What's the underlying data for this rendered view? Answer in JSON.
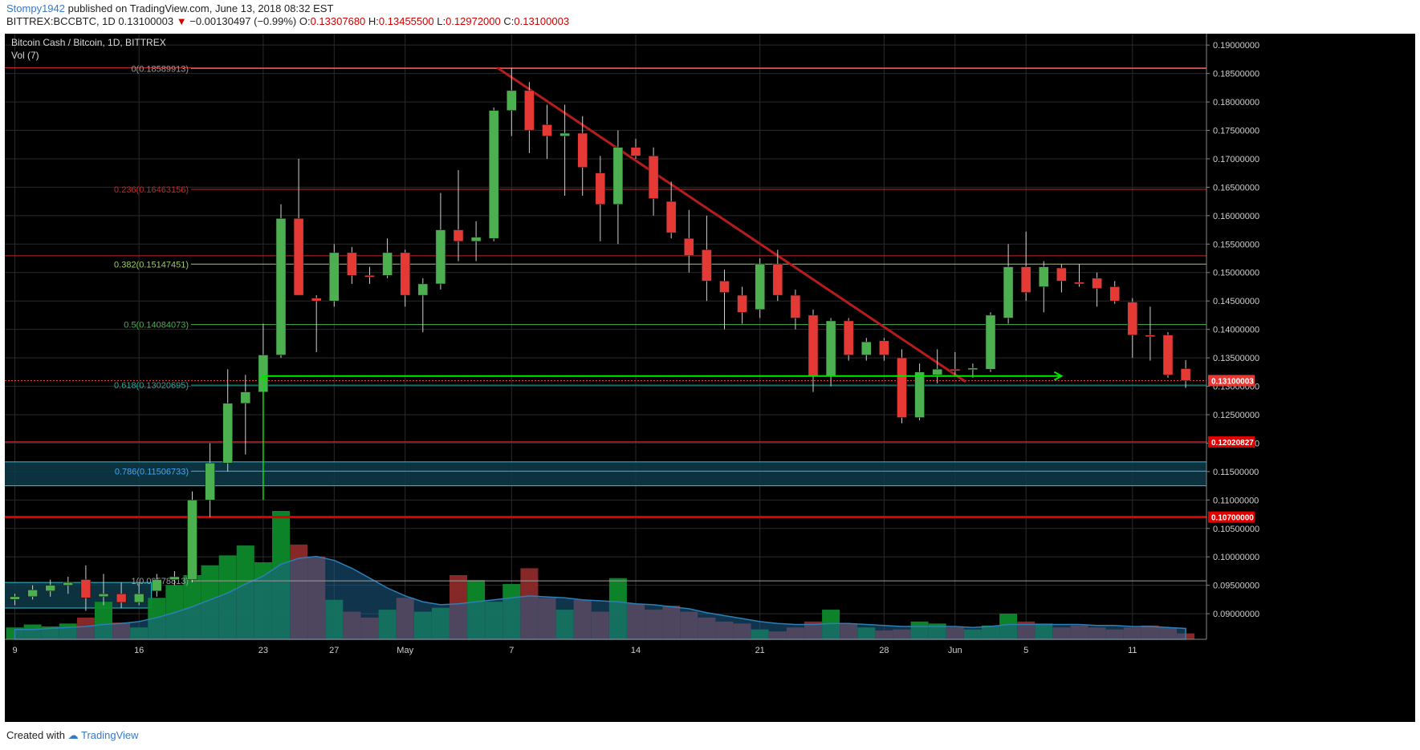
{
  "header": {
    "author": "Stompy1942",
    "published": "published on TradingView.com, June 13, 2018 08:32 EST",
    "symbol": "BITTREX:BCCBTC, 1D",
    "last": "0.13100003",
    "change": "−0.00130497 (−0.99%)",
    "o_label": "O:",
    "o_value": "0.13307680",
    "h_label": "H:",
    "h_value": "0.13455500",
    "l_label": "L:",
    "l_value": "0.12972000",
    "c_label": "C:",
    "c_value": "0.13100003"
  },
  "footer": {
    "created_with": "Created with",
    "brand": "TradingView"
  },
  "colors": {
    "background": "#000000",
    "grid": "#2a2a2a",
    "up": "#4caf50",
    "down": "#e53935",
    "trendline": "#b71c1c",
    "arrow": "#00e600",
    "zone_fill": "#0e3b4a",
    "zone_line": "#26c6da",
    "volume_area": "#1e5f8a"
  },
  "chart_data": {
    "type": "candlestick",
    "title": "Bitcoin Cash / Bitcoin, 1D, BITTREX",
    "indicator": "Vol (7)",
    "ylim": [
      0.0855,
      0.192
    ],
    "y_ticks": [
      0.19,
      0.185,
      0.18,
      0.175,
      0.17,
      0.165,
      0.16,
      0.155,
      0.15,
      0.145,
      0.14,
      0.135,
      0.13,
      0.125,
      0.12,
      0.115,
      0.11,
      0.105,
      0.1,
      0.095,
      0.09
    ],
    "y_tick_labels": [
      "0.19000000",
      "0.18500000",
      "0.18000000",
      "0.17500000",
      "0.17000000",
      "0.16500000",
      "0.16000000",
      "0.15500000",
      "0.15000000",
      "0.14500000",
      "0.14000000",
      "0.13500000",
      "0.13000000",
      "0.12500000",
      "0.12000000",
      "0.11500000",
      "0.11000000",
      "0.10500000",
      "0.10000000",
      "0.09500000",
      "0.09000000"
    ],
    "x_ticks": [
      {
        "label": "9",
        "index": 0
      },
      {
        "label": "16",
        "index": 7
      },
      {
        "label": "23",
        "index": 14
      },
      {
        "label": "27",
        "index": 18
      },
      {
        "label": "May",
        "index": 22
      },
      {
        "label": "7",
        "index": 28
      },
      {
        "label": "14",
        "index": 35
      },
      {
        "label": "21",
        "index": 42
      },
      {
        "label": "28",
        "index": 49
      },
      {
        "label": "Jun",
        "index": 53
      },
      {
        "label": "5",
        "index": 57
      },
      {
        "label": "11",
        "index": 63
      }
    ],
    "candles": [
      {
        "o": 0.0925,
        "h": 0.0935,
        "l": 0.0915,
        "c": 0.093
      },
      {
        "o": 0.093,
        "h": 0.095,
        "l": 0.0925,
        "c": 0.0942
      },
      {
        "o": 0.094,
        "h": 0.096,
        "l": 0.093,
        "c": 0.095
      },
      {
        "o": 0.095,
        "h": 0.0965,
        "l": 0.0935,
        "c": 0.0955
      },
      {
        "o": 0.096,
        "h": 0.0985,
        "l": 0.0905,
        "c": 0.0928
      },
      {
        "o": 0.093,
        "h": 0.097,
        "l": 0.0915,
        "c": 0.0935
      },
      {
        "o": 0.0935,
        "h": 0.0955,
        "l": 0.091,
        "c": 0.092
      },
      {
        "o": 0.092,
        "h": 0.0955,
        "l": 0.0915,
        "c": 0.0935
      },
      {
        "o": 0.094,
        "h": 0.097,
        "l": 0.093,
        "c": 0.096
      },
      {
        "o": 0.096,
        "h": 0.0975,
        "l": 0.095,
        "c": 0.0965
      },
      {
        "o": 0.096,
        "h": 0.1115,
        "l": 0.0955,
        "c": 0.11
      },
      {
        "o": 0.11,
        "h": 0.12,
        "l": 0.107,
        "c": 0.1165
      },
      {
        "o": 0.1165,
        "h": 0.133,
        "l": 0.115,
        "c": 0.127
      },
      {
        "o": 0.127,
        "h": 0.132,
        "l": 0.118,
        "c": 0.129
      },
      {
        "o": 0.129,
        "h": 0.141,
        "l": 0.127,
        "c": 0.1355
      },
      {
        "o": 0.1355,
        "h": 0.162,
        "l": 0.135,
        "c": 0.1595
      },
      {
        "o": 0.1595,
        "h": 0.17,
        "l": 0.147,
        "c": 0.146
      },
      {
        "o": 0.1455,
        "h": 0.146,
        "l": 0.136,
        "c": 0.145
      },
      {
        "o": 0.145,
        "h": 0.155,
        "l": 0.144,
        "c": 0.1535
      },
      {
        "o": 0.1535,
        "h": 0.1545,
        "l": 0.148,
        "c": 0.1495
      },
      {
        "o": 0.1495,
        "h": 0.151,
        "l": 0.148,
        "c": 0.1492
      },
      {
        "o": 0.1495,
        "h": 0.156,
        "l": 0.149,
        "c": 0.1535
      },
      {
        "o": 0.1535,
        "h": 0.154,
        "l": 0.144,
        "c": 0.146
      },
      {
        "o": 0.146,
        "h": 0.149,
        "l": 0.1395,
        "c": 0.148
      },
      {
        "o": 0.148,
        "h": 0.164,
        "l": 0.147,
        "c": 0.1575
      },
      {
        "o": 0.1575,
        "h": 0.168,
        "l": 0.152,
        "c": 0.1555
      },
      {
        "o": 0.1555,
        "h": 0.159,
        "l": 0.152,
        "c": 0.1562
      },
      {
        "o": 0.156,
        "h": 0.179,
        "l": 0.1555,
        "c": 0.1785
      },
      {
        "o": 0.1785,
        "h": 0.186,
        "l": 0.174,
        "c": 0.182
      },
      {
        "o": 0.182,
        "h": 0.1835,
        "l": 0.171,
        "c": 0.175
      },
      {
        "o": 0.176,
        "h": 0.1795,
        "l": 0.17,
        "c": 0.174
      },
      {
        "o": 0.174,
        "h": 0.1795,
        "l": 0.1635,
        "c": 0.1745
      },
      {
        "o": 0.1745,
        "h": 0.1775,
        "l": 0.1635,
        "c": 0.1685
      },
      {
        "o": 0.1675,
        "h": 0.1705,
        "l": 0.1555,
        "c": 0.162
      },
      {
        "o": 0.162,
        "h": 0.175,
        "l": 0.155,
        "c": 0.172
      },
      {
        "o": 0.172,
        "h": 0.1735,
        "l": 0.17,
        "c": 0.1705
      },
      {
        "o": 0.1705,
        "h": 0.172,
        "l": 0.16,
        "c": 0.163
      },
      {
        "o": 0.1625,
        "h": 0.166,
        "l": 0.156,
        "c": 0.157
      },
      {
        "o": 0.156,
        "h": 0.161,
        "l": 0.15,
        "c": 0.153
      },
      {
        "o": 0.154,
        "h": 0.16,
        "l": 0.145,
        "c": 0.1485
      },
      {
        "o": 0.1485,
        "h": 0.1505,
        "l": 0.14,
        "c": 0.1465
      },
      {
        "o": 0.146,
        "h": 0.1475,
        "l": 0.141,
        "c": 0.143
      },
      {
        "o": 0.1435,
        "h": 0.1525,
        "l": 0.142,
        "c": 0.1515
      },
      {
        "o": 0.1515,
        "h": 0.154,
        "l": 0.145,
        "c": 0.146
      },
      {
        "o": 0.146,
        "h": 0.147,
        "l": 0.14,
        "c": 0.142
      },
      {
        "o": 0.1425,
        "h": 0.1435,
        "l": 0.129,
        "c": 0.1318
      },
      {
        "o": 0.1318,
        "h": 0.142,
        "l": 0.13,
        "c": 0.1415
      },
      {
        "o": 0.1415,
        "h": 0.142,
        "l": 0.1345,
        "c": 0.1355
      },
      {
        "o": 0.1355,
        "h": 0.1385,
        "l": 0.1345,
        "c": 0.1378
      },
      {
        "o": 0.138,
        "h": 0.1385,
        "l": 0.1345,
        "c": 0.1355
      },
      {
        "o": 0.135,
        "h": 0.1365,
        "l": 0.1235,
        "c": 0.1245
      },
      {
        "o": 0.1245,
        "h": 0.134,
        "l": 0.124,
        "c": 0.1325
      },
      {
        "o": 0.132,
        "h": 0.1365,
        "l": 0.1305,
        "c": 0.133
      },
      {
        "o": 0.133,
        "h": 0.136,
        "l": 0.132,
        "c": 0.1328
      },
      {
        "o": 0.133,
        "h": 0.134,
        "l": 0.1315,
        "c": 0.1332
      },
      {
        "o": 0.133,
        "h": 0.143,
        "l": 0.1325,
        "c": 0.1425
      },
      {
        "o": 0.142,
        "h": 0.155,
        "l": 0.141,
        "c": 0.151
      },
      {
        "o": 0.151,
        "h": 0.1572,
        "l": 0.145,
        "c": 0.1465
      },
      {
        "o": 0.1475,
        "h": 0.152,
        "l": 0.143,
        "c": 0.151
      },
      {
        "o": 0.1508,
        "h": 0.1515,
        "l": 0.1465,
        "c": 0.1485
      },
      {
        "o": 0.1483,
        "h": 0.1515,
        "l": 0.1475,
        "c": 0.148
      },
      {
        "o": 0.149,
        "h": 0.15,
        "l": 0.144,
        "c": 0.1472
      },
      {
        "o": 0.1475,
        "h": 0.1485,
        "l": 0.1445,
        "c": 0.145
      },
      {
        "o": 0.1448,
        "h": 0.1455,
        "l": 0.135,
        "c": 0.139
      },
      {
        "o": 0.139,
        "h": 0.144,
        "l": 0.1345,
        "c": 0.1388
      },
      {
        "o": 0.139,
        "h": 0.1395,
        "l": 0.1315,
        "c": 0.132
      },
      {
        "o": 0.1331,
        "h": 0.1346,
        "l": 0.1297,
        "c": 0.131
      }
    ],
    "volume": [
      0.12,
      0.15,
      0.13,
      0.16,
      0.22,
      0.38,
      0.17,
      0.12,
      0.42,
      0.55,
      0.65,
      0.75,
      0.85,
      0.95,
      0.78,
      1.3,
      0.96,
      0.84,
      0.4,
      0.28,
      0.22,
      0.3,
      0.42,
      0.28,
      0.32,
      0.65,
      0.6,
      0.38,
      0.56,
      0.72,
      0.42,
      0.3,
      0.4,
      0.28,
      0.62,
      0.36,
      0.3,
      0.34,
      0.28,
      0.22,
      0.18,
      0.16,
      0.1,
      0.08,
      0.12,
      0.18,
      0.3,
      0.16,
      0.12,
      0.09,
      0.1,
      0.18,
      0.16,
      0.12,
      0.1,
      0.14,
      0.26,
      0.18,
      0.16,
      0.12,
      0.14,
      0.12,
      0.1,
      0.12,
      0.14,
      0.12,
      0.06
    ],
    "volume_ma": [
      0.1,
      0.1,
      0.11,
      0.12,
      0.13,
      0.15,
      0.16,
      0.18,
      0.22,
      0.27,
      0.33,
      0.4,
      0.47,
      0.56,
      0.64,
      0.76,
      0.82,
      0.84,
      0.8,
      0.72,
      0.62,
      0.52,
      0.44,
      0.38,
      0.35,
      0.36,
      0.38,
      0.4,
      0.42,
      0.44,
      0.43,
      0.42,
      0.4,
      0.39,
      0.38,
      0.36,
      0.35,
      0.33,
      0.31,
      0.27,
      0.24,
      0.21,
      0.18,
      0.16,
      0.15,
      0.15,
      0.16,
      0.16,
      0.15,
      0.14,
      0.13,
      0.13,
      0.13,
      0.13,
      0.12,
      0.13,
      0.15,
      0.15,
      0.15,
      0.15,
      0.15,
      0.14,
      0.14,
      0.13,
      0.13,
      0.12,
      0.11
    ],
    "fib_levels": [
      {
        "label": "0(0.18589913)",
        "value": 0.18589913,
        "color": "#9e9e9e"
      },
      {
        "label": "0.236(0.16463156)",
        "value": 0.16463156,
        "color": "#c62828"
      },
      {
        "label": "0.382(0.15147451)",
        "value": 0.15147451,
        "color": "#9ccc65"
      },
      {
        "label": "0.5(0.14084073)",
        "value": 0.14084073,
        "color": "#4caf50"
      },
      {
        "label": "0.618(0.13020695)",
        "value": 0.13020695,
        "color": "#26a69a"
      },
      {
        "label": "0.786(0.11506733)",
        "value": 0.11506733,
        "color": "#42a5f5"
      },
      {
        "label": "1(0.09578813)",
        "value": 0.09578813,
        "color": "#9e9e9e"
      }
    ],
    "horizontal_lines": [
      {
        "value": 0.186,
        "color": "#c62828",
        "label": "",
        "width": 1
      },
      {
        "value": 0.15295,
        "color": "#c62828",
        "label": "",
        "width": 1
      },
      {
        "value": 0.12020827,
        "color": "#c62828",
        "label": "0.12020827",
        "width": 1.3
      },
      {
        "value": 0.107,
        "color": "#e00000",
        "label": "0.10700000",
        "width": 3
      }
    ],
    "current_price": {
      "value": 0.13100003,
      "label": "0.13100003",
      "color": "#e53935"
    },
    "zones": [
      {
        "y1": 0.1167,
        "y2": 0.1125,
        "x1": -0.95,
        "x2": null
      },
      {
        "y1": 0.0955,
        "y2": 0.091,
        "x1": -0.95,
        "x2": 7.7
      }
    ],
    "trendline": {
      "x1": 27.2,
      "y1": 0.186,
      "x2": 53.6,
      "y2": 0.1308
    },
    "arrow_up": {
      "x": 14.0,
      "y1": 0.11,
      "y2": 0.132
    },
    "arrow_right": {
      "x1": 14.0,
      "x2": 59.0,
      "y": 0.1318
    }
  }
}
